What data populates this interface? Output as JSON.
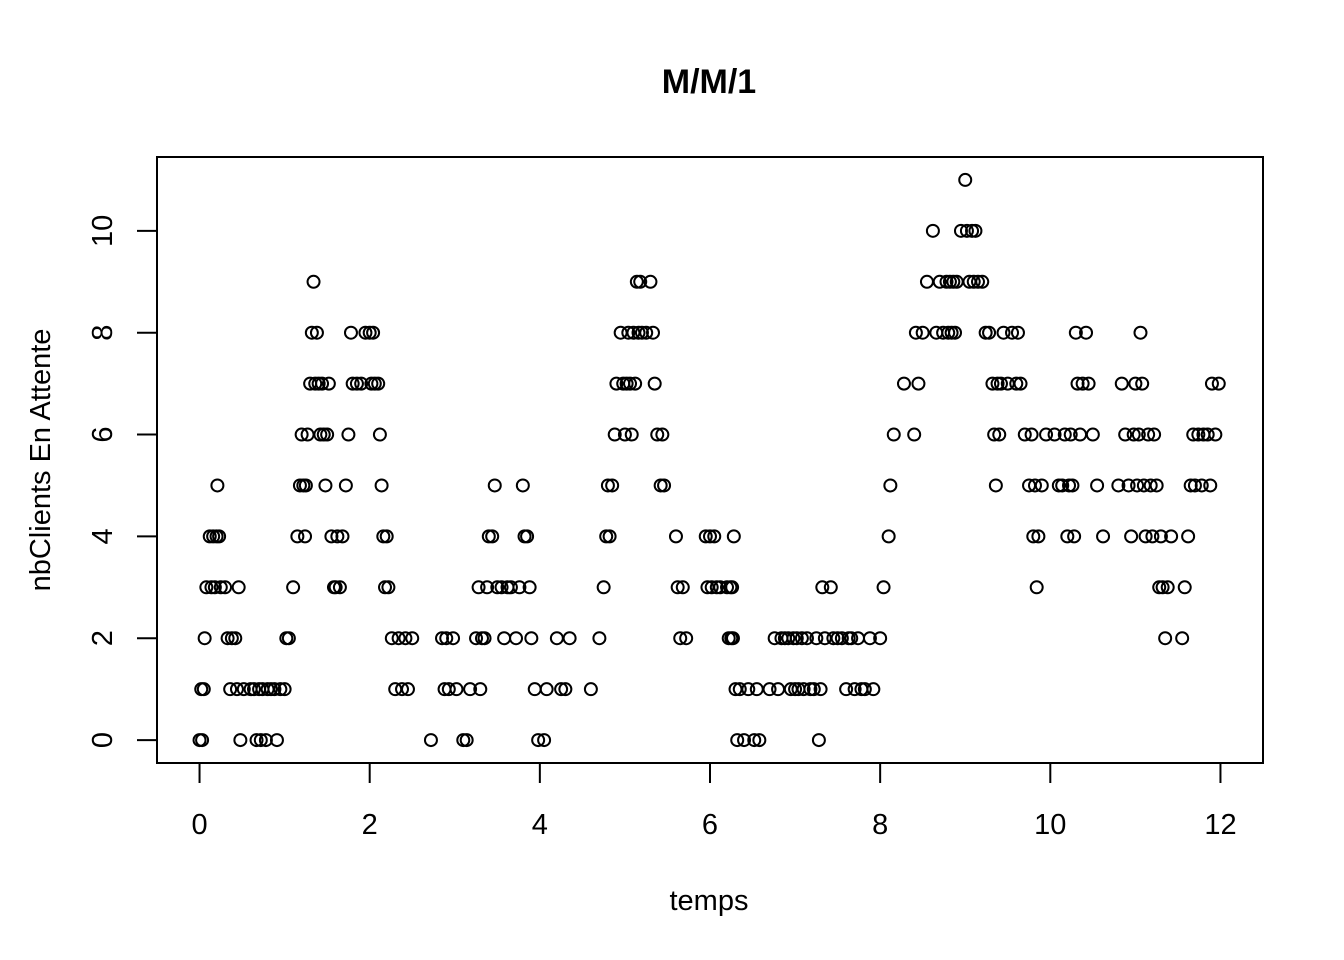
{
  "chart_data": {
    "type": "scatter",
    "title": "M/M/1",
    "xlabel": "temps",
    "ylabel": "nbClients En Attente",
    "xlim": [
      -0.5,
      12.5
    ],
    "ylim": [
      -0.45,
      11.45
    ],
    "x_ticks": [
      0,
      2,
      4,
      6,
      8,
      10,
      12
    ],
    "y_ticks": [
      0,
      2,
      4,
      6,
      8,
      10
    ],
    "grid": false,
    "legend": "none",
    "marker": "open-circle",
    "color": "#000000",
    "points": [
      [
        0.0,
        0
      ],
      [
        0.02,
        1
      ],
      [
        0.03,
        0
      ],
      [
        0.05,
        1
      ],
      [
        0.06,
        2
      ],
      [
        0.08,
        3
      ],
      [
        0.12,
        4
      ],
      [
        0.14,
        3
      ],
      [
        0.16,
        4
      ],
      [
        0.18,
        3
      ],
      [
        0.2,
        4
      ],
      [
        0.21,
        5
      ],
      [
        0.23,
        4
      ],
      [
        0.25,
        3
      ],
      [
        0.3,
        3
      ],
      [
        0.33,
        2
      ],
      [
        0.36,
        1
      ],
      [
        0.38,
        2
      ],
      [
        0.42,
        2
      ],
      [
        0.44,
        1
      ],
      [
        0.46,
        3
      ],
      [
        0.48,
        0
      ],
      [
        0.52,
        1
      ],
      [
        0.6,
        1
      ],
      [
        0.64,
        1
      ],
      [
        0.67,
        0
      ],
      [
        0.7,
        1
      ],
      [
        0.72,
        0
      ],
      [
        0.74,
        1
      ],
      [
        0.78,
        0
      ],
      [
        0.8,
        1
      ],
      [
        0.84,
        1
      ],
      [
        0.88,
        1
      ],
      [
        0.91,
        0
      ],
      [
        0.95,
        1
      ],
      [
        1.0,
        1
      ],
      [
        1.02,
        2
      ],
      [
        1.05,
        2
      ],
      [
        1.1,
        3
      ],
      [
        1.15,
        4
      ],
      [
        1.18,
        5
      ],
      [
        1.2,
        6
      ],
      [
        1.22,
        5
      ],
      [
        1.24,
        4
      ],
      [
        1.25,
        5
      ],
      [
        1.27,
        6
      ],
      [
        1.3,
        7
      ],
      [
        1.32,
        8
      ],
      [
        1.34,
        9
      ],
      [
        1.36,
        7
      ],
      [
        1.38,
        8
      ],
      [
        1.4,
        7
      ],
      [
        1.42,
        6
      ],
      [
        1.44,
        7
      ],
      [
        1.46,
        6
      ],
      [
        1.48,
        5
      ],
      [
        1.5,
        6
      ],
      [
        1.52,
        7
      ],
      [
        1.55,
        4
      ],
      [
        1.58,
        3
      ],
      [
        1.6,
        3
      ],
      [
        1.62,
        4
      ],
      [
        1.65,
        3
      ],
      [
        1.68,
        4
      ],
      [
        1.72,
        5
      ],
      [
        1.75,
        6
      ],
      [
        1.78,
        8
      ],
      [
        1.8,
        7
      ],
      [
        1.85,
        7
      ],
      [
        1.9,
        7
      ],
      [
        1.95,
        8
      ],
      [
        2.0,
        8
      ],
      [
        2.02,
        7
      ],
      [
        2.04,
        8
      ],
      [
        2.06,
        7
      ],
      [
        2.1,
        7
      ],
      [
        2.12,
        6
      ],
      [
        2.14,
        5
      ],
      [
        2.16,
        4
      ],
      [
        2.18,
        3
      ],
      [
        2.2,
        4
      ],
      [
        2.22,
        3
      ],
      [
        2.26,
        2
      ],
      [
        2.3,
        1
      ],
      [
        2.34,
        2
      ],
      [
        2.38,
        1
      ],
      [
        2.42,
        2
      ],
      [
        2.45,
        1
      ],
      [
        2.5,
        2
      ],
      [
        2.72,
        0
      ],
      [
        2.85,
        2
      ],
      [
        2.88,
        1
      ],
      [
        2.9,
        2
      ],
      [
        2.93,
        1
      ],
      [
        2.98,
        2
      ],
      [
        3.02,
        1
      ],
      [
        3.1,
        0
      ],
      [
        3.14,
        0
      ],
      [
        3.18,
        1
      ],
      [
        3.25,
        2
      ],
      [
        3.28,
        3
      ],
      [
        3.3,
        1
      ],
      [
        3.32,
        2
      ],
      [
        3.35,
        2
      ],
      [
        3.38,
        3
      ],
      [
        3.4,
        4
      ],
      [
        3.44,
        4
      ],
      [
        3.47,
        5
      ],
      [
        3.5,
        3
      ],
      [
        3.55,
        3
      ],
      [
        3.58,
        2
      ],
      [
        3.62,
        3
      ],
      [
        3.66,
        3
      ],
      [
        3.72,
        2
      ],
      [
        3.76,
        3
      ],
      [
        3.8,
        5
      ],
      [
        3.82,
        4
      ],
      [
        3.85,
        4
      ],
      [
        3.88,
        3
      ],
      [
        3.9,
        2
      ],
      [
        3.94,
        1
      ],
      [
        3.98,
        0
      ],
      [
        4.05,
        0
      ],
      [
        4.08,
        1
      ],
      [
        4.2,
        2
      ],
      [
        4.25,
        1
      ],
      [
        4.3,
        1
      ],
      [
        4.35,
        2
      ],
      [
        4.6,
        1
      ],
      [
        4.7,
        2
      ],
      [
        4.75,
        3
      ],
      [
        4.78,
        4
      ],
      [
        4.8,
        5
      ],
      [
        4.82,
        4
      ],
      [
        4.85,
        5
      ],
      [
        4.88,
        6
      ],
      [
        4.9,
        7
      ],
      [
        4.95,
        8
      ],
      [
        4.98,
        7
      ],
      [
        5.0,
        6
      ],
      [
        5.02,
        7
      ],
      [
        5.04,
        8
      ],
      [
        5.06,
        7
      ],
      [
        5.08,
        6
      ],
      [
        5.1,
        8
      ],
      [
        5.12,
        7
      ],
      [
        5.14,
        9
      ],
      [
        5.16,
        8
      ],
      [
        5.18,
        9
      ],
      [
        5.2,
        8
      ],
      [
        5.25,
        8
      ],
      [
        5.3,
        9
      ],
      [
        5.33,
        8
      ],
      [
        5.35,
        7
      ],
      [
        5.38,
        6
      ],
      [
        5.42,
        5
      ],
      [
        5.44,
        6
      ],
      [
        5.46,
        5
      ],
      [
        5.6,
        4
      ],
      [
        5.62,
        3
      ],
      [
        5.65,
        2
      ],
      [
        5.68,
        3
      ],
      [
        5.72,
        2
      ],
      [
        5.95,
        4
      ],
      [
        5.97,
        3
      ],
      [
        6.0,
        4
      ],
      [
        6.02,
        3
      ],
      [
        6.05,
        4
      ],
      [
        6.08,
        3
      ],
      [
        6.12,
        3
      ],
      [
        6.2,
        3
      ],
      [
        6.22,
        2
      ],
      [
        6.24,
        3
      ],
      [
        6.25,
        2
      ],
      [
        6.26,
        3
      ],
      [
        6.27,
        2
      ],
      [
        6.28,
        4
      ],
      [
        6.3,
        1
      ],
      [
        6.32,
        0
      ],
      [
        6.35,
        1
      ],
      [
        6.4,
        0
      ],
      [
        6.45,
        1
      ],
      [
        6.52,
        0
      ],
      [
        6.55,
        1
      ],
      [
        6.58,
        0
      ],
      [
        6.7,
        1
      ],
      [
        6.76,
        2
      ],
      [
        6.8,
        1
      ],
      [
        6.84,
        2
      ],
      [
        6.88,
        2
      ],
      [
        6.92,
        2
      ],
      [
        6.95,
        1
      ],
      [
        6.98,
        2
      ],
      [
        7.0,
        1
      ],
      [
        7.02,
        2
      ],
      [
        7.04,
        1
      ],
      [
        7.08,
        2
      ],
      [
        7.1,
        1
      ],
      [
        7.14,
        2
      ],
      [
        7.18,
        1
      ],
      [
        7.22,
        1
      ],
      [
        7.25,
        2
      ],
      [
        7.28,
        0
      ],
      [
        7.3,
        1
      ],
      [
        7.32,
        3
      ],
      [
        7.35,
        2
      ],
      [
        7.42,
        3
      ],
      [
        7.45,
        2
      ],
      [
        7.5,
        2
      ],
      [
        7.55,
        2
      ],
      [
        7.6,
        1
      ],
      [
        7.63,
        2
      ],
      [
        7.66,
        2
      ],
      [
        7.7,
        1
      ],
      [
        7.74,
        2
      ],
      [
        7.78,
        1
      ],
      [
        7.82,
        1
      ],
      [
        7.88,
        2
      ],
      [
        7.92,
        1
      ],
      [
        8.0,
        2
      ],
      [
        8.04,
        3
      ],
      [
        8.1,
        4
      ],
      [
        8.12,
        5
      ],
      [
        8.16,
        6
      ],
      [
        8.28,
        7
      ],
      [
        8.4,
        6
      ],
      [
        8.42,
        8
      ],
      [
        8.45,
        7
      ],
      [
        8.5,
        8
      ],
      [
        8.55,
        9
      ],
      [
        8.62,
        10
      ],
      [
        8.66,
        8
      ],
      [
        8.7,
        9
      ],
      [
        8.74,
        8
      ],
      [
        8.78,
        9
      ],
      [
        8.8,
        8
      ],
      [
        8.82,
        9
      ],
      [
        8.84,
        8
      ],
      [
        8.86,
        9
      ],
      [
        8.88,
        8
      ],
      [
        8.9,
        9
      ],
      [
        8.95,
        10
      ],
      [
        9.0,
        11
      ],
      [
        9.02,
        10
      ],
      [
        9.05,
        9
      ],
      [
        9.08,
        10
      ],
      [
        9.1,
        9
      ],
      [
        9.12,
        10
      ],
      [
        9.15,
        9
      ],
      [
        9.2,
        9
      ],
      [
        9.24,
        8
      ],
      [
        9.28,
        8
      ],
      [
        9.32,
        7
      ],
      [
        9.34,
        6
      ],
      [
        9.36,
        5
      ],
      [
        9.38,
        7
      ],
      [
        9.4,
        6
      ],
      [
        9.42,
        7
      ],
      [
        9.45,
        8
      ],
      [
        9.5,
        7
      ],
      [
        9.55,
        8
      ],
      [
        9.6,
        7
      ],
      [
        9.62,
        8
      ],
      [
        9.65,
        7
      ],
      [
        9.7,
        6
      ],
      [
        9.75,
        5
      ],
      [
        9.78,
        6
      ],
      [
        9.8,
        4
      ],
      [
        9.82,
        5
      ],
      [
        9.84,
        3
      ],
      [
        9.86,
        4
      ],
      [
        9.9,
        5
      ],
      [
        9.95,
        6
      ],
      [
        10.05,
        6
      ],
      [
        10.1,
        5
      ],
      [
        10.14,
        5
      ],
      [
        10.17,
        6
      ],
      [
        10.2,
        4
      ],
      [
        10.22,
        5
      ],
      [
        10.24,
        6
      ],
      [
        10.26,
        5
      ],
      [
        10.28,
        4
      ],
      [
        10.3,
        8
      ],
      [
        10.32,
        7
      ],
      [
        10.35,
        6
      ],
      [
        10.38,
        7
      ],
      [
        10.42,
        8
      ],
      [
        10.45,
        7
      ],
      [
        10.5,
        6
      ],
      [
        10.55,
        5
      ],
      [
        10.62,
        4
      ],
      [
        10.8,
        5
      ],
      [
        10.84,
        7
      ],
      [
        10.88,
        6
      ],
      [
        10.92,
        5
      ],
      [
        10.95,
        4
      ],
      [
        10.98,
        6
      ],
      [
        11.0,
        7
      ],
      [
        11.02,
        5
      ],
      [
        11.04,
        6
      ],
      [
        11.06,
        8
      ],
      [
        11.08,
        7
      ],
      [
        11.1,
        5
      ],
      [
        11.12,
        4
      ],
      [
        11.15,
        6
      ],
      [
        11.18,
        5
      ],
      [
        11.2,
        4
      ],
      [
        11.22,
        6
      ],
      [
        11.25,
        5
      ],
      [
        11.28,
        3
      ],
      [
        11.3,
        4
      ],
      [
        11.32,
        3
      ],
      [
        11.35,
        2
      ],
      [
        11.38,
        3
      ],
      [
        11.42,
        4
      ],
      [
        11.55,
        2
      ],
      [
        11.58,
        3
      ],
      [
        11.62,
        4
      ],
      [
        11.65,
        5
      ],
      [
        11.68,
        6
      ],
      [
        11.7,
        5
      ],
      [
        11.74,
        6
      ],
      [
        11.78,
        5
      ],
      [
        11.8,
        6
      ],
      [
        11.85,
        6
      ],
      [
        11.88,
        5
      ],
      [
        11.9,
        7
      ],
      [
        11.94,
        6
      ],
      [
        11.98,
        7
      ]
    ]
  }
}
